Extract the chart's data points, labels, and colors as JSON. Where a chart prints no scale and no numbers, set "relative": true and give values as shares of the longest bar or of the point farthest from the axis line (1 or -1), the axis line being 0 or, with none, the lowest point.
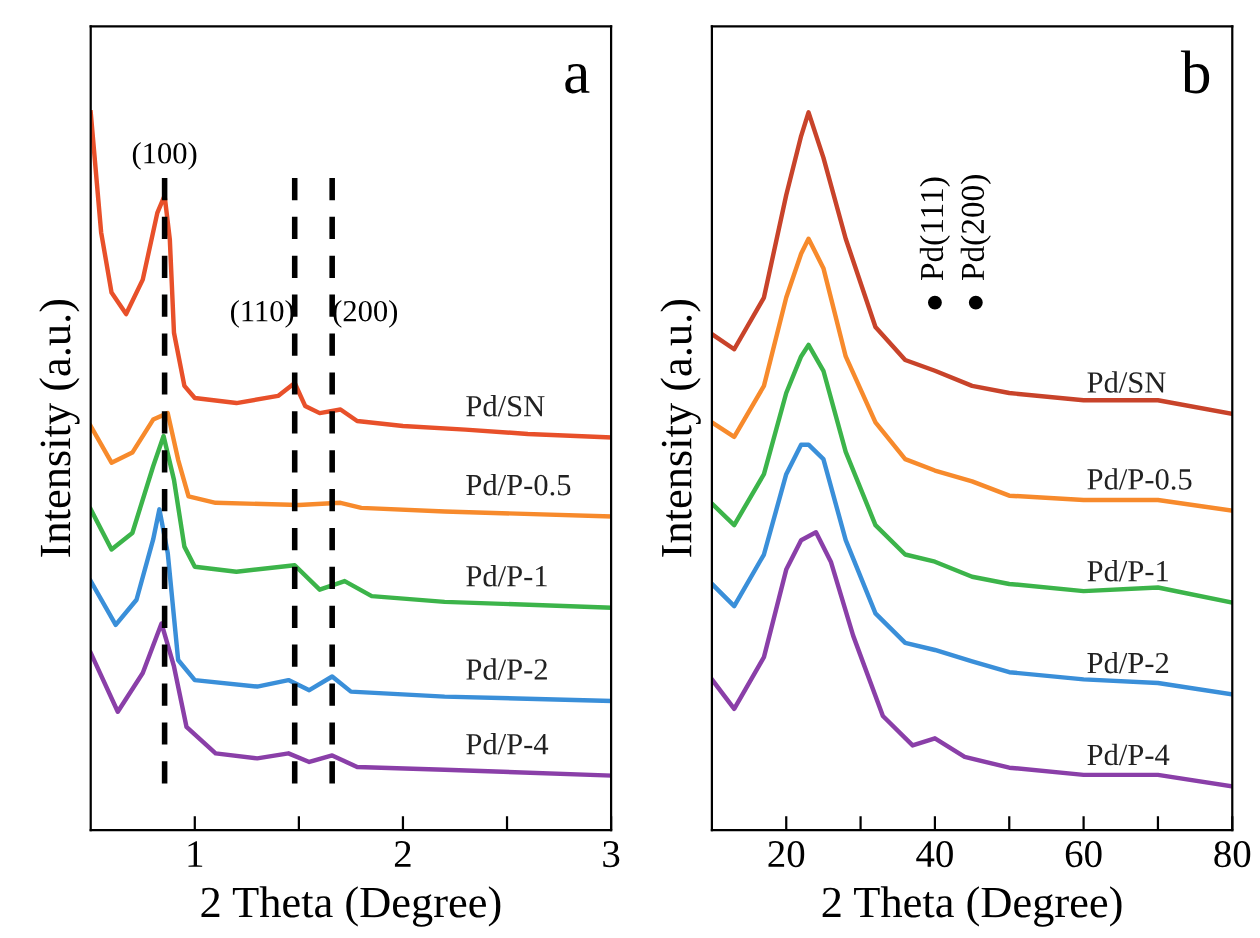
{
  "chart_data": [
    {
      "type": "line",
      "xlabel": "2 Theta (Degree)",
      "ylabel": "Intensity (a.u.)",
      "relative": true,
      "tick_labels": "x",
      "xlim": [
        0.5,
        3
      ],
      "xticks": [
        1,
        {
          "value": 1.5,
          "label": null
        },
        2,
        {
          "value": 2.5,
          "label": null
        },
        3
      ],
      "grid": false,
      "legend": false,
      "marker": "none",
      "line_style": "solid",
      "annotations": [
        "a",
        {
          "text": "(100)",
          "x": 0.855,
          "y": 0.92
        },
        {
          "text": "(110)",
          "x": 1.48,
          "y": 0.7
        },
        {
          "text": "(200)",
          "x": 1.66,
          "y": 0.7
        }
      ],
      "ref_lines": [
        {
          "axis": "x",
          "value": 0.855,
          "color": "#000000",
          "line_style": "dashed"
        },
        {
          "axis": "x",
          "value": 1.48,
          "color": "#000000",
          "line_style": "dashed"
        },
        {
          "axis": "x",
          "value": 1.66,
          "color": "#000000",
          "line_style": "dashed"
        }
      ],
      "series": [
        {
          "name": "Pd/SN",
          "color": "#e8502a",
          "x": [
            0.5,
            0.55,
            0.6,
            0.67,
            0.75,
            0.82,
            0.855,
            0.88,
            0.9,
            0.95,
            1.0,
            1.2,
            1.4,
            1.48,
            1.53,
            1.6,
            1.7,
            1.78,
            2.0,
            2.3,
            2.6,
            3.0
          ],
          "values": [
            1.0,
            0.833,
            0.749,
            0.719,
            0.767,
            0.86,
            0.884,
            0.823,
            0.693,
            0.619,
            0.602,
            0.595,
            0.605,
            0.623,
            0.591,
            0.581,
            0.586,
            0.57,
            0.563,
            0.558,
            0.552,
            0.547
          ]
        },
        {
          "name": "Pd/P-0.5",
          "color": "#f78a2c",
          "x": [
            0.5,
            0.6,
            0.7,
            0.8,
            0.87,
            0.92,
            0.97,
            1.1,
            1.5,
            1.7,
            1.8,
            2.2,
            3.0
          ],
          "values": [
            0.563,
            0.512,
            0.526,
            0.572,
            0.581,
            0.516,
            0.465,
            0.456,
            0.453,
            0.456,
            0.449,
            0.444,
            0.437
          ]
        },
        {
          "name": "Pd/P-1",
          "color": "#3cb44a",
          "x": [
            0.5,
            0.6,
            0.7,
            0.8,
            0.85,
            0.9,
            0.95,
            1.0,
            1.2,
            1.48,
            1.6,
            1.72,
            1.85,
            2.2,
            3.0
          ],
          "values": [
            0.447,
            0.391,
            0.414,
            0.507,
            0.549,
            0.488,
            0.395,
            0.367,
            0.36,
            0.369,
            0.335,
            0.347,
            0.326,
            0.318,
            0.31
          ]
        },
        {
          "name": "Pd/P-2",
          "color": "#3a8fd9",
          "x": [
            0.5,
            0.62,
            0.72,
            0.8,
            0.83,
            0.87,
            0.92,
            1.0,
            1.3,
            1.45,
            1.55,
            1.66,
            1.75,
            2.2,
            3.0
          ],
          "values": [
            0.347,
            0.286,
            0.321,
            0.405,
            0.447,
            0.386,
            0.237,
            0.209,
            0.2,
            0.209,
            0.195,
            0.214,
            0.193,
            0.186,
            0.18
          ]
        },
        {
          "name": "Pd/P-4",
          "color": "#8a3fa8",
          "x": [
            0.5,
            0.63,
            0.75,
            0.84,
            0.9,
            0.96,
            1.1,
            1.3,
            1.45,
            1.55,
            1.66,
            1.78,
            2.2,
            3.0
          ],
          "values": [
            0.247,
            0.165,
            0.219,
            0.288,
            0.228,
            0.144,
            0.107,
            0.1,
            0.107,
            0.095,
            0.104,
            0.088,
            0.084,
            0.076
          ]
        }
      ]
    },
    {
      "type": "line",
      "xlabel": "2 Theta (Degree)",
      "ylabel": "Intensity (a.u.)",
      "relative": true,
      "tick_labels": "x",
      "xlim": [
        10,
        80
      ],
      "xticks": [
        20,
        {
          "value": 30,
          "label": null
        },
        40,
        {
          "value": 50,
          "label": null
        },
        60,
        {
          "value": 70,
          "label": null
        },
        80
      ],
      "grid": false,
      "legend": false,
      "marker": "none",
      "line_style": "solid",
      "annotations": [
        "b",
        {
          "text": "Pd(111)",
          "x": 40,
          "y": 0.735
        },
        {
          "text": "Pd(200)",
          "x": 45.5,
          "y": 0.735
        }
      ],
      "series": [
        {
          "name": "Pd/SN",
          "color": "#c8432a",
          "x": [
            10,
            13,
            17,
            20,
            22,
            23,
            25,
            28,
            32,
            36,
            40,
            45,
            50,
            60,
            70,
            80
          ],
          "values": [
            0.691,
            0.67,
            0.742,
            0.885,
            0.967,
            1.0,
            0.937,
            0.824,
            0.701,
            0.655,
            0.64,
            0.619,
            0.609,
            0.599,
            0.599,
            0.58
          ]
        },
        {
          "name": "Pd/P-0.5",
          "color": "#f78a2c",
          "x": [
            10,
            13,
            17,
            20,
            22,
            23,
            25,
            28,
            32,
            36,
            40,
            45,
            50,
            60,
            70,
            80
          ],
          "values": [
            0.568,
            0.548,
            0.619,
            0.742,
            0.803,
            0.824,
            0.783,
            0.66,
            0.568,
            0.517,
            0.501,
            0.486,
            0.466,
            0.46,
            0.46,
            0.445
          ]
        },
        {
          "name": "Pd/P-1",
          "color": "#3cb44a",
          "x": [
            10,
            13,
            17,
            20,
            22,
            23,
            25,
            28,
            32,
            36,
            40,
            45,
            50,
            60,
            70,
            80
          ],
          "values": [
            0.455,
            0.425,
            0.496,
            0.609,
            0.66,
            0.676,
            0.64,
            0.527,
            0.425,
            0.384,
            0.374,
            0.353,
            0.343,
            0.333,
            0.338,
            0.317
          ]
        },
        {
          "name": "Pd/P-2",
          "color": "#3a8fd9",
          "x": [
            10,
            13,
            17,
            20,
            22,
            23,
            25,
            28,
            32,
            36,
            40,
            45,
            50,
            60,
            70,
            80
          ],
          "values": [
            0.343,
            0.312,
            0.384,
            0.496,
            0.537,
            0.537,
            0.517,
            0.404,
            0.302,
            0.261,
            0.251,
            0.235,
            0.22,
            0.21,
            0.205,
            0.189
          ]
        },
        {
          "name": "Pd/P-4",
          "color": "#8a3fa8",
          "x": [
            10,
            13,
            17,
            20,
            22,
            24,
            26,
            29,
            33,
            37,
            40,
            44,
            50,
            60,
            70,
            80
          ],
          "values": [
            0.21,
            0.169,
            0.241,
            0.363,
            0.404,
            0.415,
            0.374,
            0.271,
            0.159,
            0.118,
            0.128,
            0.102,
            0.087,
            0.077,
            0.077,
            0.061
          ]
        }
      ]
    }
  ]
}
